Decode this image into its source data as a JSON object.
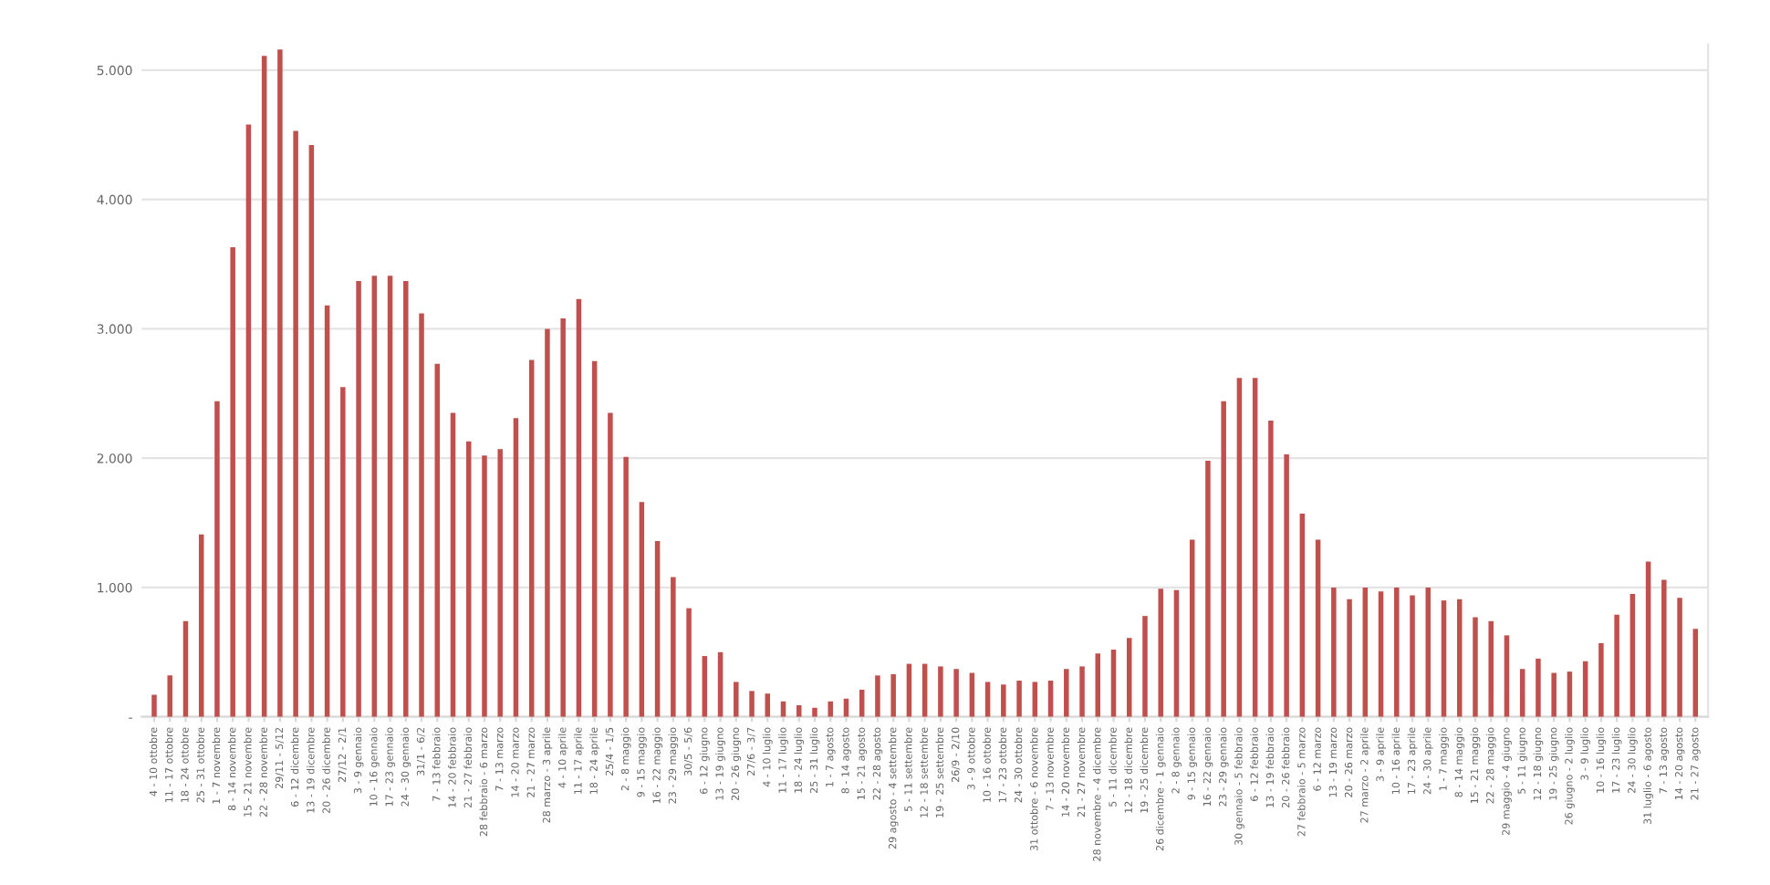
{
  "chart_data": {
    "type": "bar",
    "color": "#c0504d",
    "grid": "y",
    "categories": [
      "4 - 10 ottobre",
      "11 - 17 ottobre",
      "18 - 24 ottobre",
      "25 - 31 ottobre",
      "1 - 7 novembre",
      "8 - 14 novembre",
      "15 - 21 novembre",
      "22 - 28 novembre",
      "29/11 - 5/12",
      "6 - 12 dicembre",
      "13 - 19 dicembre",
      "20 - 26 dicembre",
      "27/12 - 2/1",
      "3 - 9 gennaio",
      "10 - 16 gennaio",
      "17 - 23 gennaio",
      "24 - 30 gennaio",
      "31/1 - 6/2",
      "7 - 13 febbraio",
      "14 - 20 febbraio",
      "21 - 27 febbraio",
      "28 febbraio - 6 marzo",
      "7 - 13 marzo",
      "14 - 20 marzo",
      "21 - 27 marzo",
      "28 marzo - 3 aprile",
      "4 - 10 aprile",
      "11 - 17 aprile",
      "18 - 24 aprile",
      "25/4 - 1/5",
      "2 - 8 maggio",
      "9 - 15 maggio",
      "16 - 22 maggio",
      "23 - 29 maggio",
      "30/5 - 5/6",
      "6 - 12 giugno",
      "13 - 19 giugno",
      "20 - 26 giugno",
      "27/6 - 3/7",
      "4 - 10 luglio",
      "11 - 17 luglio",
      "18 - 24 luglio",
      "25 - 31 luglio",
      "1 - 7 agosto",
      "8 - 14 agosto",
      "15 - 21 agosto",
      "22 - 28 agosto",
      "29 agosto - 4 settembre",
      "5 - 11 settembre",
      "12 - 18 settembre",
      "19 - 25 settembre",
      "26/9 - 2/10",
      "3 - 9 ottobre",
      "10 - 16 ottobre",
      "17 - 23 ottobre",
      "24 - 30 ottobre",
      "31 ottobre - 6 novembre",
      "7 - 13 novembre",
      "14 - 20 novembre",
      "21 - 27 novembre",
      "28 novembre - 4 dicembre",
      "5 - 11 dicembre",
      "12 - 18 dicembre",
      "19 - 25 dicembre",
      "26 dicembre - 1 gennaio",
      "2 - 8 gennaio",
      "9 - 15 gennaio",
      "16 - 22 gennaio",
      "23 - 29 gennaio",
      "30 gennaio - 5 febbraio",
      "6 - 12 febbraio",
      "13 - 19 febbraio",
      "20 - 26 febbraio",
      "27 febbraio - 5 marzo",
      "6 - 12 marzo",
      "13 - 19 marzo",
      "20 - 26 marzo",
      "27 marzo - 2 aprile",
      "3 - 9 aprile",
      "10 - 16 aprile",
      "17 - 23 aprile",
      "24 - 30 aprile",
      "1 - 7 maggio",
      "8 - 14 maggio",
      "15 - 21 maggio",
      "22 - 28 maggio",
      "29 maggio - 4 giugno",
      "5 - 11 giugno",
      "12 - 18 giugno",
      "19 - 25 giugno",
      "26 giugno - 2 luglio",
      "3 - 9 luglio",
      "10 - 16 luglio",
      "17 - 23 luglio",
      "24 - 30 luglio",
      "31 luglio - 6 agosto",
      "7 - 13 agosto",
      "14 - 20 agosto",
      "21 - 27 agosto"
    ],
    "values": [
      170,
      320,
      740,
      1410,
      2440,
      3630,
      4580,
      5110,
      5160,
      4530,
      4420,
      3180,
      2550,
      3370,
      3410,
      3410,
      3370,
      3120,
      2730,
      2350,
      2130,
      2020,
      2070,
      2310,
      2760,
      3000,
      3080,
      3230,
      2750,
      2350,
      2010,
      1660,
      1360,
      1080,
      840,
      470,
      500,
      270,
      200,
      180,
      120,
      90,
      70,
      120,
      140,
      210,
      320,
      330,
      410,
      410,
      390,
      370,
      340,
      270,
      250,
      280,
      270,
      280,
      370,
      390,
      490,
      520,
      610,
      780,
      990,
      980,
      1370,
      1980,
      2440,
      2620,
      2620,
      2290,
      2030,
      1570,
      1370,
      1000,
      910,
      1000,
      970,
      1000,
      940,
      1000,
      900,
      910,
      770,
      740,
      630,
      370,
      450,
      340,
      350,
      430,
      570,
      790,
      950,
      1200,
      1060,
      920,
      680
    ],
    "ylim": [
      0,
      5200
    ],
    "yticks": [
      {
        "value": 0,
        "label": "-"
      },
      {
        "value": 1000,
        "label": "1.000"
      },
      {
        "value": 2000,
        "label": "2.000"
      },
      {
        "value": 3000,
        "label": "3.000"
      },
      {
        "value": 4000,
        "label": "4.000"
      },
      {
        "value": 5000,
        "label": "5.000"
      }
    ]
  }
}
